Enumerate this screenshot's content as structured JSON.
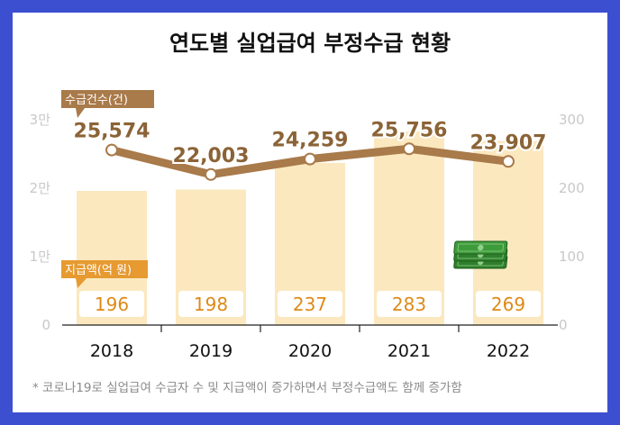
{
  "chart_data": {
    "type": "bar",
    "title": "연도별 실업급여 부정수급 현황",
    "categories": [
      "2018",
      "2019",
      "2020",
      "2021",
      "2022"
    ],
    "series": [
      {
        "name": "지급액(억 원)",
        "type": "bar",
        "axis": "right",
        "values": [
          196,
          198,
          237,
          283,
          269
        ],
        "labels": [
          "196",
          "198",
          "237",
          "283",
          "269"
        ]
      },
      {
        "name": "수급건수(건)",
        "type": "line",
        "axis": "left",
        "values": [
          25574,
          22003,
          24259,
          25756,
          23907
        ],
        "labels": [
          "25,574",
          "22,003",
          "24,259",
          "25,756",
          "23,907"
        ]
      }
    ],
    "y_left": {
      "ylim": [
        0,
        30000
      ],
      "ticks": [
        "0",
        "1만",
        "2만",
        "3만"
      ]
    },
    "y_right": {
      "ylim": [
        0,
        300
      ],
      "ticks": [
        "0",
        "100",
        "200",
        "300"
      ]
    },
    "note": "* 코로나19로 실업급여 수급자 수 및 지급액이 증가하면서 부정수급액도 함께 증가함"
  },
  "icons": {
    "money": "cash-stack-icon"
  },
  "colors": {
    "background": "#3d4fd1",
    "bar": "#fbe8bf",
    "line": "#a97a4a",
    "line_label": "#8b6336",
    "bar_label": "#dd8a18",
    "bar_tag": "#e69a30",
    "axis_text": "#c8c8c8",
    "note_text": "#8a8a8a"
  }
}
